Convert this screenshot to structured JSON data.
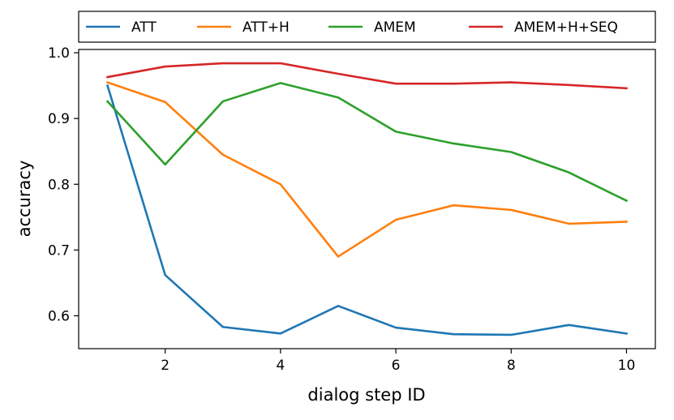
{
  "chart_data": {
    "type": "line",
    "title": "",
    "xlabel": "dialog step ID",
    "ylabel": "accuracy",
    "x": [
      1,
      2,
      3,
      4,
      5,
      6,
      7,
      8,
      9,
      10
    ],
    "xlim": [
      0.5,
      10.5
    ],
    "ylim": [
      0.55,
      1.005
    ],
    "xticks": [
      2,
      4,
      6,
      8,
      10
    ],
    "yticks": [
      0.6,
      0.7,
      0.8,
      0.9,
      1.0
    ],
    "xtick_labels": [
      "2",
      "4",
      "6",
      "8",
      "10"
    ],
    "ytick_labels": [
      "0.6",
      "0.7",
      "0.8",
      "0.9",
      "1.0"
    ],
    "grid": false,
    "legend_position": "top, outside plot area",
    "series": [
      {
        "name": "ATT",
        "color": "#1f77b4",
        "values": [
          0.95,
          0.662,
          0.583,
          0.573,
          0.615,
          0.582,
          0.572,
          0.571,
          0.586,
          0.573
        ]
      },
      {
        "name": "ATT+H",
        "color": "#ff7f0e",
        "values": [
          0.955,
          0.925,
          0.845,
          0.8,
          0.69,
          0.746,
          0.768,
          0.761,
          0.74,
          0.743
        ]
      },
      {
        "name": "AMEM",
        "color": "#2ca02c",
        "values": [
          0.926,
          0.83,
          0.926,
          0.954,
          0.932,
          0.88,
          0.862,
          0.849,
          0.818,
          0.775
        ]
      },
      {
        "name": "AMEM+H+SEQ",
        "color": "#d62728",
        "values": [
          0.963,
          0.979,
          0.984,
          0.984,
          0.968,
          0.953,
          0.953,
          0.955,
          0.951,
          0.946
        ]
      }
    ]
  }
}
